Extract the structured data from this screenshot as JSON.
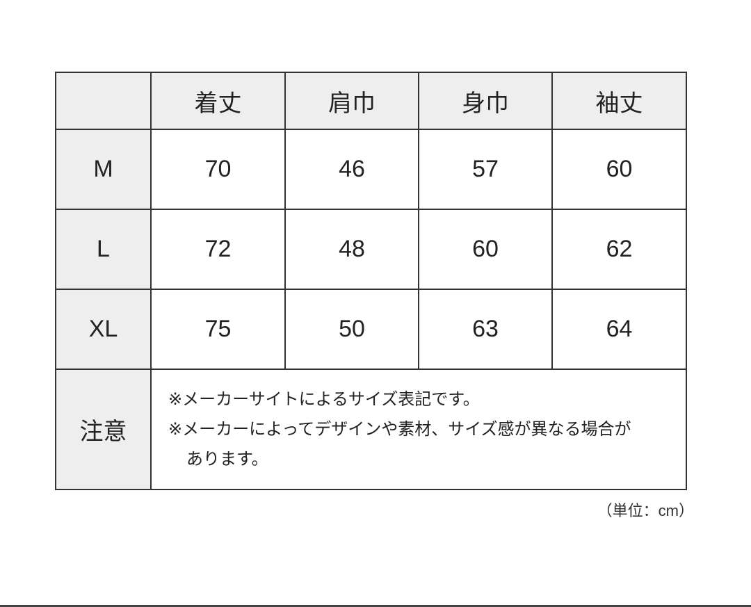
{
  "table": {
    "columns": [
      "",
      "着丈",
      "肩巾",
      "身巾",
      "袖丈"
    ],
    "rows": [
      {
        "size": "M",
        "values": [
          "70",
          "46",
          "57",
          "60"
        ]
      },
      {
        "size": "L",
        "values": [
          "72",
          "48",
          "60",
          "62"
        ]
      },
      {
        "size": "XL",
        "values": [
          "75",
          "50",
          "63",
          "64"
        ]
      }
    ],
    "note_label": "注意",
    "notes": [
      "※メーカーサイトによるサイズ表記です。",
      "※メーカーによってデザインや素材、サイズ感が異なる場合が",
      "あります。"
    ]
  },
  "unit_label": "（単位：cm）",
  "colors": {
    "header_bg": "#eeeeee",
    "border": "#333333"
  }
}
